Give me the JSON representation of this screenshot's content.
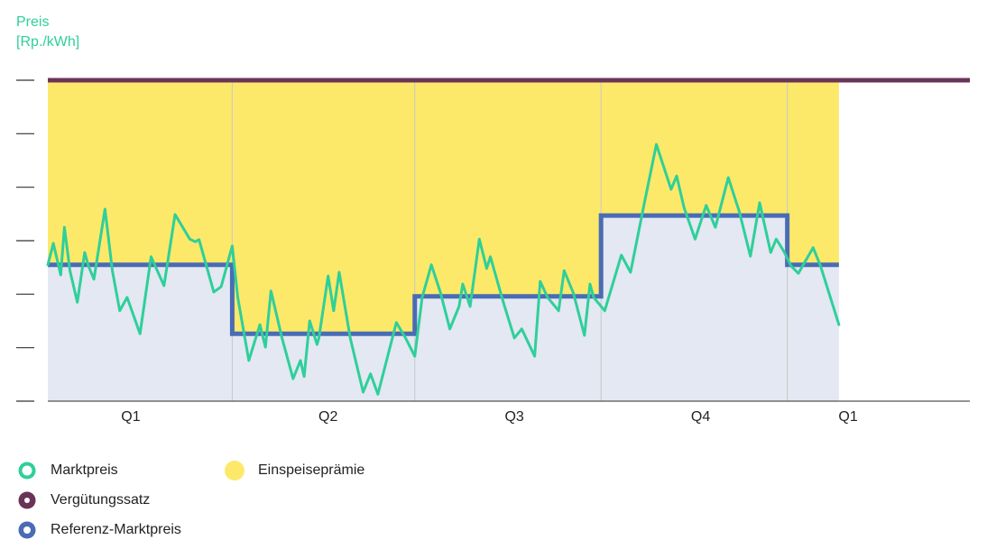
{
  "chart_data": {
    "type": "line",
    "ylabel": [
      "Preis",
      "[Rp./kWh]"
    ],
    "xlim": [
      0,
      5
    ],
    "ylim": [
      0,
      6
    ],
    "yticks": [
      0,
      1,
      2,
      3,
      4,
      5,
      6
    ],
    "xticks": [
      {
        "value": 0.45,
        "label": "Q1"
      },
      {
        "value": 1.52,
        "label": "Q2"
      },
      {
        "value": 2.53,
        "label": "Q3"
      },
      {
        "value": 3.54,
        "label": "Q4"
      },
      {
        "value": 4.34,
        "label": "Q1"
      }
    ],
    "series": [
      {
        "name": "Marktpreis",
        "color": "#2fcf9a",
        "x": [
          0,
          0.03,
          0.07,
          0.09,
          0.12,
          0.16,
          0.2,
          0.22,
          0.25,
          0.31,
          0.35,
          0.39,
          0.43,
          0.5,
          0.56,
          0.63,
          0.69,
          0.77,
          0.8,
          0.82,
          0.9,
          0.94,
          1.0,
          1.03,
          1.09,
          1.15,
          1.18,
          1.21,
          1.27,
          1.33,
          1.37,
          1.39,
          1.42,
          1.46,
          1.47,
          1.52,
          1.55,
          1.58,
          1.64,
          1.71,
          1.75,
          1.79,
          1.89,
          1.94,
          1.99,
          2.03,
          2.08,
          2.13,
          2.18,
          2.23,
          2.25,
          2.29,
          2.34,
          2.38,
          2.4,
          2.47,
          2.53,
          2.57,
          2.64,
          2.67,
          2.71,
          2.77,
          2.8,
          2.85,
          2.91,
          2.94,
          2.96,
          3.02,
          3.11,
          3.16,
          3.23,
          3.3,
          3.38,
          3.41,
          3.45,
          3.51,
          3.57,
          3.62,
          3.69,
          3.75,
          3.81,
          3.86,
          3.92,
          3.95,
          3.99,
          4.03,
          4.07,
          4.15,
          4.19,
          4.29
        ],
        "values": [
          2.55,
          2.95,
          2.36,
          3.25,
          2.44,
          1.85,
          2.78,
          2.53,
          2.28,
          3.59,
          2.44,
          1.69,
          1.94,
          1.26,
          2.7,
          2.16,
          3.49,
          3.03,
          2.98,
          3.02,
          2.04,
          2.14,
          2.9,
          1.94,
          0.76,
          1.43,
          1.01,
          2.06,
          1.18,
          0.42,
          0.76,
          0.46,
          1.5,
          1.06,
          1.18,
          2.34,
          1.69,
          2.41,
          1.18,
          0.17,
          0.51,
          0.13,
          1.47,
          1.18,
          0.84,
          1.94,
          2.55,
          2.02,
          1.35,
          1.77,
          2.19,
          1.77,
          3.03,
          2.48,
          2.7,
          1.85,
          1.18,
          1.35,
          0.84,
          2.24,
          1.94,
          1.69,
          2.44,
          2.02,
          1.23,
          2.19,
          1.94,
          1.69,
          2.73,
          2.41,
          3.62,
          4.8,
          3.96,
          4.21,
          3.62,
          3.03,
          3.66,
          3.25,
          4.18,
          3.54,
          2.71,
          3.71,
          2.78,
          3.03,
          2.81,
          2.53,
          2.39,
          2.87,
          2.53,
          1.43
        ]
      },
      {
        "name": "Vergütungssatz",
        "color": "#6a3358",
        "x": [
          0,
          5
        ],
        "values": [
          6,
          6
        ]
      },
      {
        "name": "Referenz-Marktpreis",
        "color": "#4a6cb5",
        "step": true,
        "x": [
          0,
          1,
          1.99,
          3,
          4.01,
          4.29
        ],
        "values": [
          2.55,
          1.26,
          1.96,
          3.47,
          2.55,
          2.55
        ]
      }
    ],
    "areas": [
      {
        "name": "Einspeiseprämie",
        "color": "#fce96a"
      }
    ]
  }
}
